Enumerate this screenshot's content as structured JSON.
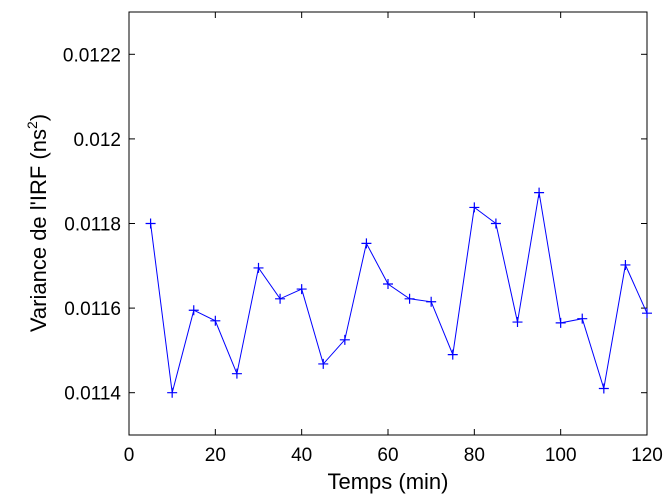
{
  "chart_data": {
    "type": "line",
    "title": "",
    "xlabel": "Temps (min)",
    "ylabel": "Variance de l'IRF (ns",
    "ylabel_superscript": "2",
    "ylabel_suffix": ")",
    "xlim": [
      0,
      120
    ],
    "ylim": [
      0.0113,
      0.0123
    ],
    "x_ticks": [
      0,
      20,
      40,
      60,
      80,
      100,
      120
    ],
    "x_tick_labels": [
      "0",
      "20",
      "40",
      "60",
      "80",
      "100",
      "120"
    ],
    "y_ticks": [
      0.0114,
      0.0116,
      0.0118,
      0.012,
      0.0122
    ],
    "y_tick_labels": [
      "0.0114",
      "0.0116",
      "0.0118",
      "0.012",
      "0.0122"
    ],
    "grid": false,
    "legend": "none",
    "series": [
      {
        "color": "#0000ff",
        "marker": "+",
        "x": [
          5,
          10,
          15,
          20,
          25,
          30,
          35,
          40,
          45,
          50,
          55,
          60,
          65,
          70,
          75,
          80,
          85,
          90,
          95,
          100,
          105,
          110,
          115,
          120
        ],
        "y": [
          0.0118,
          0.0114,
          0.011595,
          0.01157,
          0.011445,
          0.011695,
          0.011622,
          0.011645,
          0.011468,
          0.011525,
          0.011753,
          0.011657,
          0.011622,
          0.011615,
          0.01149,
          0.011838,
          0.0118,
          0.011567,
          0.011873,
          0.011565,
          0.011575,
          0.01141,
          0.011702,
          0.011588
        ]
      }
    ]
  }
}
